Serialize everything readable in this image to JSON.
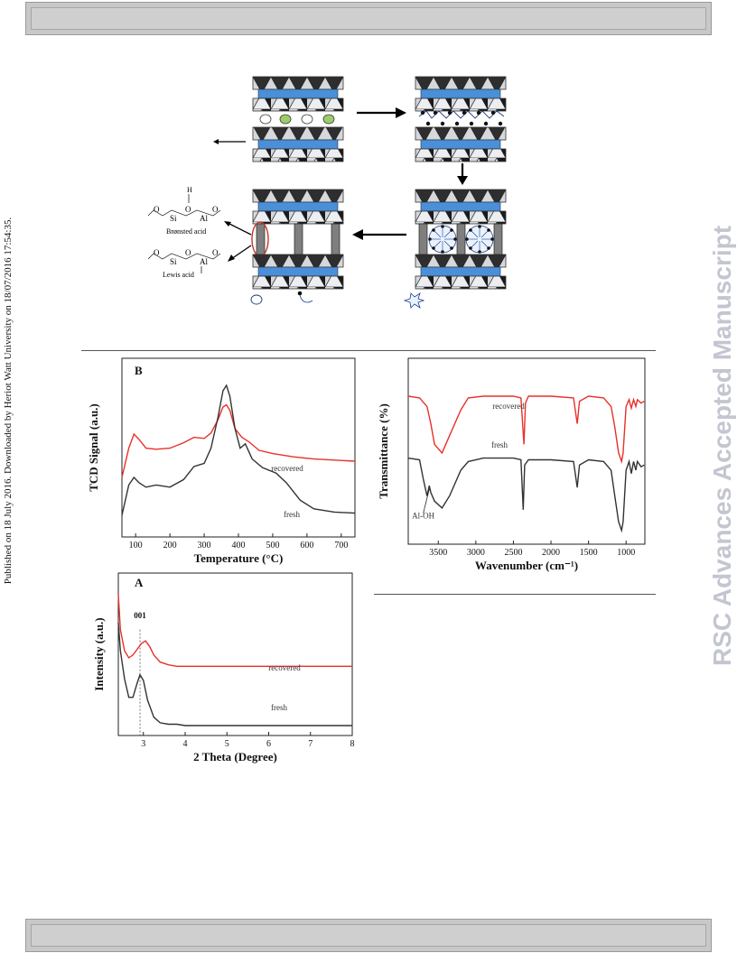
{
  "page": {
    "published_note": "Published on 18 July 2016. Downloaded by Heriot Watt University on 18/07/2016 17:54:35.",
    "journal_watermark": "RSC Advances Accepted Manuscript"
  },
  "scheme": {
    "bronsted_label": "Brønsted acid",
    "lewis_label": "Lewis acid",
    "h_label": "H",
    "si_label": "Si",
    "al_label": "Al",
    "o_label": "O"
  },
  "chart_data": [
    {
      "panel": "B",
      "type": "line",
      "title": "B",
      "xlabel": "Temperature (°C)",
      "ylabel": "TCD Signal (a.u.)",
      "xlim": [
        60,
        740
      ],
      "xticks": [
        100,
        200,
        300,
        400,
        500,
        600,
        700
      ],
      "grid": false,
      "series": [
        {
          "name": "recovered",
          "color": "#e8312a",
          "x": [
            60,
            80,
            95,
            110,
            130,
            160,
            200,
            240,
            270,
            300,
            320,
            340,
            355,
            365,
            375,
            390,
            410,
            430,
            460,
            500,
            560,
            620,
            680,
            740
          ],
          "y": [
            0.35,
            0.62,
            0.75,
            0.7,
            0.62,
            0.61,
            0.62,
            0.67,
            0.72,
            0.71,
            0.76,
            0.88,
            1.0,
            1.02,
            0.97,
            0.8,
            0.72,
            0.68,
            0.6,
            0.57,
            0.54,
            0.52,
            0.51,
            0.5
          ]
        },
        {
          "name": "fresh",
          "color": "#333333",
          "x": [
            60,
            80,
            95,
            110,
            130,
            160,
            200,
            240,
            270,
            300,
            320,
            340,
            355,
            365,
            375,
            390,
            405,
            420,
            440,
            470,
            510,
            540,
            580,
            620,
            680,
            740
          ],
          "y": [
            0.0,
            0.28,
            0.35,
            0.3,
            0.26,
            0.28,
            0.26,
            0.33,
            0.45,
            0.48,
            0.62,
            0.9,
            1.15,
            1.2,
            1.1,
            0.8,
            0.62,
            0.66,
            0.52,
            0.44,
            0.39,
            0.3,
            0.14,
            0.06,
            0.03,
            0.02
          ]
        }
      ]
    },
    {
      "panel": "FTIR",
      "type": "line",
      "title": "",
      "xlabel": "Wavenumber (cm-1)",
      "ylabel": "Transmittance (%)",
      "xlim": [
        3900,
        750
      ],
      "xticks": [
        3500,
        3000,
        2500,
        2000,
        1500,
        1000
      ],
      "grid": false,
      "annotation": "Al-OH",
      "series": [
        {
          "name": "recovered",
          "color": "#e8312a",
          "x": [
            3900,
            3750,
            3650,
            3600,
            3550,
            3450,
            3350,
            3200,
            3100,
            2900,
            2500,
            2400,
            2360,
            2340,
            2300,
            2000,
            1700,
            1650,
            1620,
            1500,
            1300,
            1200,
            1150,
            1100,
            1060,
            1040,
            1000,
            960,
            930,
            900,
            870,
            850,
            800,
            760
          ],
          "y": [
            0.78,
            0.77,
            0.72,
            0.62,
            0.5,
            0.45,
            0.55,
            0.7,
            0.77,
            0.78,
            0.78,
            0.77,
            0.5,
            0.74,
            0.78,
            0.78,
            0.77,
            0.62,
            0.75,
            0.78,
            0.77,
            0.72,
            0.6,
            0.45,
            0.4,
            0.45,
            0.72,
            0.76,
            0.71,
            0.76,
            0.72,
            0.76,
            0.74,
            0.75
          ]
        },
        {
          "name": "fresh",
          "color": "#333333",
          "x": [
            3900,
            3750,
            3700,
            3650,
            3620,
            3600,
            3550,
            3450,
            3350,
            3200,
            3100,
            2900,
            2500,
            2400,
            2370,
            2350,
            2300,
            2000,
            1700,
            1650,
            1620,
            1500,
            1300,
            1200,
            1150,
            1100,
            1060,
            1040,
            1000,
            960,
            930,
            900,
            870,
            850,
            800,
            760
          ],
          "y": [
            0.42,
            0.41,
            0.3,
            0.2,
            0.26,
            0.22,
            0.17,
            0.13,
            0.2,
            0.35,
            0.4,
            0.42,
            0.42,
            0.41,
            0.12,
            0.38,
            0.41,
            0.41,
            0.4,
            0.25,
            0.38,
            0.41,
            0.4,
            0.35,
            0.2,
            0.05,
            0.0,
            0.05,
            0.35,
            0.4,
            0.33,
            0.4,
            0.35,
            0.4,
            0.37,
            0.38
          ]
        }
      ]
    },
    {
      "panel": "A",
      "type": "line",
      "title": "A",
      "xlabel": "2 Theta (Degree)",
      "ylabel": "Intensity (a.u.)",
      "xlim": [
        2.4,
        8
      ],
      "xticks": [
        3,
        4,
        5,
        6,
        7,
        8
      ],
      "grid": false,
      "annotation": "001",
      "series": [
        {
          "name": "recovered",
          "color": "#e8312a",
          "x": [
            2.4,
            2.45,
            2.55,
            2.65,
            2.75,
            2.85,
            2.95,
            3.05,
            3.15,
            3.25,
            3.4,
            3.6,
            3.8,
            4.0,
            5.0,
            6.0,
            7.0,
            8.0
          ],
          "y": [
            0.95,
            0.7,
            0.55,
            0.5,
            0.52,
            0.56,
            0.6,
            0.62,
            0.58,
            0.52,
            0.47,
            0.45,
            0.44,
            0.44,
            0.44,
            0.44,
            0.44,
            0.44
          ]
        },
        {
          "name": "fresh",
          "color": "#333333",
          "x": [
            2.4,
            2.45,
            2.55,
            2.65,
            2.75,
            2.85,
            2.92,
            3.0,
            3.1,
            3.25,
            3.4,
            3.6,
            3.8,
            4.0,
            5.0,
            6.0,
            7.0,
            8.0
          ],
          "y": [
            0.75,
            0.55,
            0.35,
            0.22,
            0.22,
            0.32,
            0.38,
            0.34,
            0.2,
            0.08,
            0.04,
            0.03,
            0.03,
            0.02,
            0.02,
            0.02,
            0.02,
            0.02
          ]
        }
      ]
    }
  ]
}
